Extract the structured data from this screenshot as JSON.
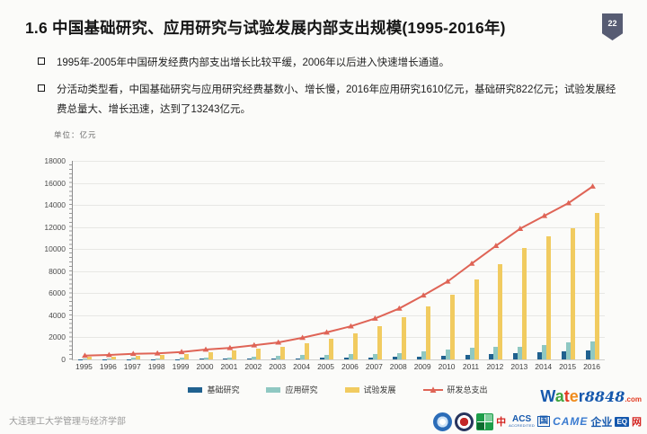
{
  "slide": {
    "title": "1.6  中国基础研究、应用研究与试验发展内部支出规模(1995-2016年)",
    "page_number": "22",
    "bullets": [
      "1995年-2005年中国研发经费内部支出增长比较平缓，2006年以后进入快速增长通道。",
      "分活动类型看，中国基础研究与应用研究经费基数小、增长慢，2016年应用研究1610亿元，基础研究822亿元；试验发展经费总量大、增长迅速，达到了13243亿元。"
    ],
    "footer": "大连理工大学管理与经济学部",
    "badge_color": "#575C73"
  },
  "chart": {
    "unit_label": "单位：亿元"
  },
  "chart_data": {
    "type": "bar",
    "title": "",
    "xlabel": "",
    "ylabel": "亿元",
    "ylim": [
      0,
      18000
    ],
    "ytick_step": 2000,
    "grid": true,
    "legend_position": "bottom",
    "categories": [
      "1995",
      "1996",
      "1997",
      "1998",
      "1999",
      "2000",
      "2001",
      "2002",
      "2003",
      "2004",
      "2005",
      "2006",
      "2007",
      "2008",
      "2009",
      "2010",
      "2011",
      "2012",
      "2013",
      "2014",
      "2015",
      "2016"
    ],
    "series": [
      {
        "name": "基础研究",
        "type": "bar",
        "color": "#20618F",
        "values": [
          18,
          20,
          27,
          28,
          34,
          47,
          56,
          74,
          88,
          117,
          131,
          156,
          175,
          221,
          270,
          325,
          412,
          499,
          555,
          614,
          716,
          822
        ]
      },
      {
        "name": "应用研究",
        "type": "bar",
        "color": "#8FC8C2",
        "values": [
          91,
          99,
          137,
          123,
          152,
          157,
          191,
          246,
          311,
          400,
          434,
          505,
          493,
          575,
          731,
          894,
          1028,
          1162,
          1169,
          1269,
          1529,
          1610
        ]
      },
      {
        "name": "试验发展",
        "type": "bar",
        "color": "#F1CB60",
        "values": [
          239,
          285,
          345,
          400,
          493,
          692,
          796,
          967,
          1141,
          1449,
          1885,
          2343,
          3043,
          3820,
          4801,
          5844,
          7247,
          8638,
          10123,
          11133,
          11925,
          13243
        ]
      },
      {
        "name": "研发总支出",
        "type": "line",
        "color": "#DF6456",
        "values": [
          349,
          405,
          509,
          551,
          679,
          896,
          1043,
          1288,
          1540,
          1966,
          2450,
          3003,
          3710,
          4616,
          5802,
          7063,
          8687,
          10298,
          11847,
          13016,
          14170,
          15677
        ]
      }
    ]
  },
  "watermark": {
    "brand_letters": [
      {
        "ch": "W",
        "color": "#1558ad"
      },
      {
        "ch": "a",
        "color": "#3fa33f"
      },
      {
        "ch": "t",
        "color": "#e23b22"
      },
      {
        "ch": "e",
        "color": "#f08c1d"
      },
      {
        "ch": "r",
        "color": "#1558ad"
      }
    ],
    "number": "8848",
    "tld": ".com",
    "row2": {
      "zhong": "中",
      "acs": "ACS",
      "accredited": "ACCREDITED",
      "guo": "国",
      "came": "CAME",
      "qiye": "企业",
      "eq": "EQ",
      "wang": "网"
    }
  }
}
